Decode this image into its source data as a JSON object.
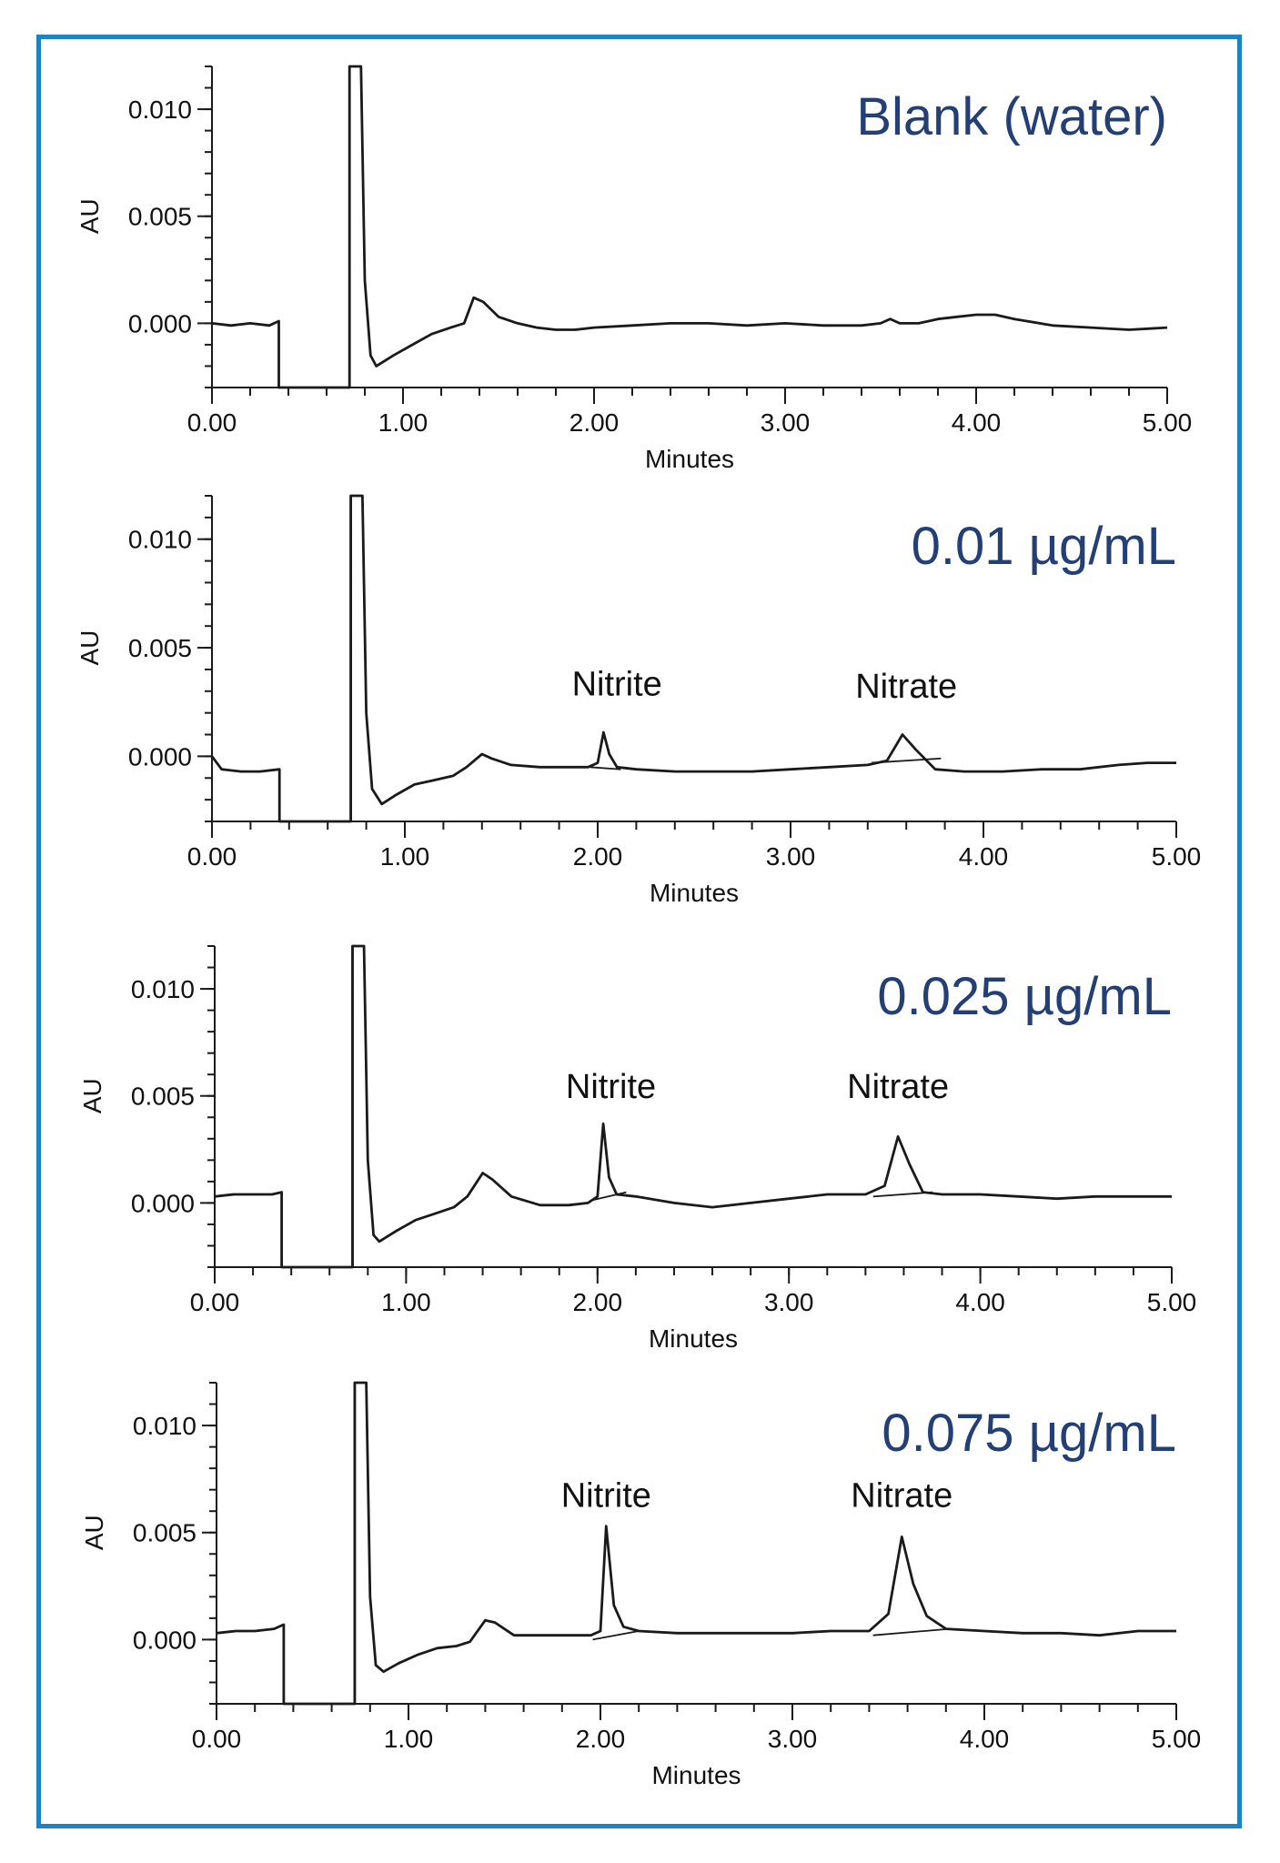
{
  "colors": {
    "frame_border": "#1f82c0",
    "title": "#243f74",
    "trace": "#1a1a1a"
  },
  "chart_data": [
    {
      "type": "line",
      "title": "Blank (water)",
      "xlabel": "Minutes",
      "ylabel": "AU",
      "xlim": [
        0,
        5
      ],
      "ylim": [
        -0.003,
        0.012
      ],
      "xticks": [
        "0.00",
        "1.00",
        "2.00",
        "3.00",
        "4.00",
        "5.00"
      ],
      "yticks": [
        "0.010",
        "0.005",
        "0.000"
      ],
      "inj_end": 0.72,
      "points": [
        [
          0,
          0
        ],
        [
          0.1,
          -0.0001
        ],
        [
          0.2,
          0
        ],
        [
          0.3,
          -0.0001
        ],
        [
          0.35,
          0.0001
        ],
        [
          0.35,
          -0.003
        ],
        [
          0.72,
          -0.003
        ],
        [
          0.72,
          0.012
        ],
        [
          0.78,
          0.012
        ],
        [
          0.8,
          0.002
        ],
        [
          0.83,
          -0.0015
        ],
        [
          0.86,
          -0.002
        ],
        [
          0.95,
          -0.0015
        ],
        [
          1.05,
          -0.001
        ],
        [
          1.15,
          -0.0005
        ],
        [
          1.25,
          -0.0002
        ],
        [
          1.32,
          0
        ],
        [
          1.37,
          0.0012
        ],
        [
          1.42,
          0.001
        ],
        [
          1.5,
          0.0003
        ],
        [
          1.6,
          0
        ],
        [
          1.7,
          -0.0002
        ],
        [
          1.8,
          -0.0003
        ],
        [
          1.9,
          -0.0003
        ],
        [
          2.0,
          -0.0002
        ],
        [
          2.2,
          -0.0001
        ],
        [
          2.4,
          0
        ],
        [
          2.6,
          0
        ],
        [
          2.8,
          -0.0001
        ],
        [
          3.0,
          0
        ],
        [
          3.2,
          -0.0001
        ],
        [
          3.4,
          -0.0001
        ],
        [
          3.5,
          0
        ],
        [
          3.55,
          0.0002
        ],
        [
          3.6,
          0
        ],
        [
          3.7,
          0
        ],
        [
          3.8,
          0.0002
        ],
        [
          3.9,
          0.0003
        ],
        [
          4.0,
          0.0004
        ],
        [
          4.1,
          0.0004
        ],
        [
          4.2,
          0.0002
        ],
        [
          4.4,
          -0.0001
        ],
        [
          4.6,
          -0.0002
        ],
        [
          4.8,
          -0.0003
        ],
        [
          5.0,
          -0.0002
        ]
      ],
      "peaks": []
    },
    {
      "type": "line",
      "title": "0.01 µg/mL",
      "xlabel": "Minutes",
      "ylabel": "AU",
      "xlim": [
        0,
        5
      ],
      "ylim": [
        -0.003,
        0.012
      ],
      "xticks": [
        "0.00",
        "1.00",
        "2.00",
        "3.00",
        "4.00",
        "5.00"
      ],
      "yticks": [
        "0.010",
        "0.005",
        "0.000"
      ],
      "inj_end": 0.72,
      "points": [
        [
          0,
          0
        ],
        [
          0.05,
          -0.0006
        ],
        [
          0.15,
          -0.0007
        ],
        [
          0.25,
          -0.0007
        ],
        [
          0.35,
          -0.0006
        ],
        [
          0.35,
          -0.003
        ],
        [
          0.72,
          -0.003
        ],
        [
          0.72,
          0.012
        ],
        [
          0.78,
          0.012
        ],
        [
          0.8,
          0.002
        ],
        [
          0.83,
          -0.0015
        ],
        [
          0.88,
          -0.0022
        ],
        [
          0.95,
          -0.0018
        ],
        [
          1.05,
          -0.0013
        ],
        [
          1.15,
          -0.0011
        ],
        [
          1.25,
          -0.0009
        ],
        [
          1.32,
          -0.0005
        ],
        [
          1.4,
          0.0001
        ],
        [
          1.45,
          -0.0001
        ],
        [
          1.55,
          -0.0004
        ],
        [
          1.7,
          -0.0005
        ],
        [
          1.85,
          -0.0005
        ],
        [
          1.95,
          -0.0005
        ],
        [
          2.0,
          -0.0003
        ],
        [
          2.03,
          0.0011
        ],
        [
          2.06,
          0.0001
        ],
        [
          2.1,
          -0.0005
        ],
        [
          2.2,
          -0.0006
        ],
        [
          2.4,
          -0.0007
        ],
        [
          2.6,
          -0.0007
        ],
        [
          2.8,
          -0.0007
        ],
        [
          3.0,
          -0.0006
        ],
        [
          3.2,
          -0.0005
        ],
        [
          3.4,
          -0.0004
        ],
        [
          3.5,
          -0.0002
        ],
        [
          3.58,
          0.001
        ],
        [
          3.65,
          0.0003
        ],
        [
          3.75,
          -0.0006
        ],
        [
          3.9,
          -0.0007
        ],
        [
          4.1,
          -0.0007
        ],
        [
          4.3,
          -0.0006
        ],
        [
          4.5,
          -0.0006
        ],
        [
          4.7,
          -0.0004
        ],
        [
          4.85,
          -0.0003
        ],
        [
          5.0,
          -0.0003
        ]
      ],
      "peaks": [
        {
          "name": "Nitrite",
          "t": 2.03,
          "base": [
            [
              1.96,
              -0.0005
            ],
            [
              2.12,
              -0.0006
            ]
          ],
          "label_x": 2.1,
          "label_y": 0.0028
        },
        {
          "name": "Nitrate",
          "t": 3.58,
          "base": [
            [
              3.42,
              -0.0003
            ],
            [
              3.78,
              -0.0001
            ]
          ],
          "label_x": 3.6,
          "label_y": 0.0027
        }
      ]
    },
    {
      "type": "line",
      "title": "0.025 µg/mL",
      "xlabel": "Minutes",
      "ylabel": "AU",
      "xlim": [
        0,
        5
      ],
      "ylim": [
        -0.003,
        0.012
      ],
      "xticks": [
        "0.00",
        "1.00",
        "2.00",
        "3.00",
        "4.00",
        "5.00"
      ],
      "yticks": [
        "0.010",
        "0.005",
        "0.000"
      ],
      "inj_end": 0.72,
      "points": [
        [
          0,
          0.0003
        ],
        [
          0.1,
          0.0004
        ],
        [
          0.2,
          0.0004
        ],
        [
          0.3,
          0.0004
        ],
        [
          0.35,
          0.0005
        ],
        [
          0.35,
          -0.003
        ],
        [
          0.72,
          -0.003
        ],
        [
          0.72,
          0.012
        ],
        [
          0.78,
          0.012
        ],
        [
          0.8,
          0.002
        ],
        [
          0.83,
          -0.0015
        ],
        [
          0.86,
          -0.0018
        ],
        [
          0.95,
          -0.0013
        ],
        [
          1.05,
          -0.0008
        ],
        [
          1.15,
          -0.0005
        ],
        [
          1.25,
          -0.0002
        ],
        [
          1.32,
          0.0003
        ],
        [
          1.4,
          0.0014
        ],
        [
          1.45,
          0.0011
        ],
        [
          1.55,
          0.0003
        ],
        [
          1.7,
          -0.0001
        ],
        [
          1.85,
          -0.0001
        ],
        [
          1.95,
          0
        ],
        [
          2.0,
          0.0003
        ],
        [
          2.03,
          0.0037
        ],
        [
          2.06,
          0.0012
        ],
        [
          2.1,
          0.0004
        ],
        [
          2.2,
          0.0003
        ],
        [
          2.4,
          0
        ],
        [
          2.6,
          -0.0002
        ],
        [
          2.8,
          0
        ],
        [
          3.0,
          0.0002
        ],
        [
          3.2,
          0.0004
        ],
        [
          3.4,
          0.0004
        ],
        [
          3.5,
          0.0008
        ],
        [
          3.57,
          0.0031
        ],
        [
          3.63,
          0.0018
        ],
        [
          3.7,
          0.0005
        ],
        [
          3.8,
          0.0004
        ],
        [
          4.0,
          0.0004
        ],
        [
          4.2,
          0.0003
        ],
        [
          4.4,
          0.0002
        ],
        [
          4.6,
          0.0003
        ],
        [
          4.8,
          0.0003
        ],
        [
          5.0,
          0.0003
        ]
      ],
      "peaks": [
        {
          "name": "Nitrite",
          "t": 2.03,
          "base": [
            [
              1.96,
              0.0001
            ],
            [
              2.15,
              0.0005
            ]
          ],
          "label_x": 2.07,
          "label_y": 0.0049
        },
        {
          "name": "Nitrate",
          "t": 3.57,
          "base": [
            [
              3.44,
              0.0003
            ],
            [
              3.75,
              0.0005
            ]
          ],
          "label_x": 3.57,
          "label_y": 0.0049
        }
      ]
    },
    {
      "type": "line",
      "title": "0.075 µg/mL",
      "xlabel": "Minutes",
      "ylabel": "AU",
      "xlim": [
        0,
        5
      ],
      "ylim": [
        -0.003,
        0.012
      ],
      "xticks": [
        "0.00",
        "1.00",
        "2.00",
        "3.00",
        "4.00",
        "5.00"
      ],
      "yticks": [
        "0.010",
        "0.005",
        "0.000"
      ],
      "inj_end": 0.72,
      "points": [
        [
          0,
          0.0003
        ],
        [
          0.1,
          0.0004
        ],
        [
          0.2,
          0.0004
        ],
        [
          0.3,
          0.0005
        ],
        [
          0.35,
          0.0007
        ],
        [
          0.35,
          -0.003
        ],
        [
          0.72,
          -0.003
        ],
        [
          0.72,
          0.012
        ],
        [
          0.78,
          0.012
        ],
        [
          0.8,
          0.002
        ],
        [
          0.83,
          -0.0012
        ],
        [
          0.87,
          -0.0015
        ],
        [
          0.95,
          -0.0011
        ],
        [
          1.05,
          -0.0007
        ],
        [
          1.15,
          -0.0004
        ],
        [
          1.25,
          -0.0003
        ],
        [
          1.32,
          -0.0001
        ],
        [
          1.4,
          0.0009
        ],
        [
          1.45,
          0.0008
        ],
        [
          1.55,
          0.0002
        ],
        [
          1.7,
          0.0002
        ],
        [
          1.85,
          0.0002
        ],
        [
          1.95,
          0.0002
        ],
        [
          2.0,
          0.0004
        ],
        [
          2.03,
          0.0053
        ],
        [
          2.07,
          0.0016
        ],
        [
          2.12,
          0.0006
        ],
        [
          2.2,
          0.0004
        ],
        [
          2.4,
          0.0003
        ],
        [
          2.6,
          0.0003
        ],
        [
          2.8,
          0.0003
        ],
        [
          3.0,
          0.0003
        ],
        [
          3.2,
          0.0004
        ],
        [
          3.4,
          0.0004
        ],
        [
          3.5,
          0.0012
        ],
        [
          3.57,
          0.0048
        ],
        [
          3.63,
          0.0026
        ],
        [
          3.7,
          0.0011
        ],
        [
          3.8,
          0.0005
        ],
        [
          4.0,
          0.0004
        ],
        [
          4.2,
          0.0003
        ],
        [
          4.4,
          0.0003
        ],
        [
          4.6,
          0.0002
        ],
        [
          4.8,
          0.0004
        ],
        [
          5.0,
          0.0004
        ]
      ],
      "peaks": [
        {
          "name": "Nitrite",
          "t": 2.03,
          "base": [
            [
              1.96,
              0
            ],
            [
              2.2,
              0.0004
            ]
          ],
          "label_x": 2.03,
          "label_y": 0.0062
        },
        {
          "name": "Nitrate",
          "t": 3.57,
          "base": [
            [
              3.42,
              0.0002
            ],
            [
              3.82,
              0.0005
            ]
          ],
          "label_x": 3.57,
          "label_y": 0.0062
        }
      ]
    }
  ]
}
